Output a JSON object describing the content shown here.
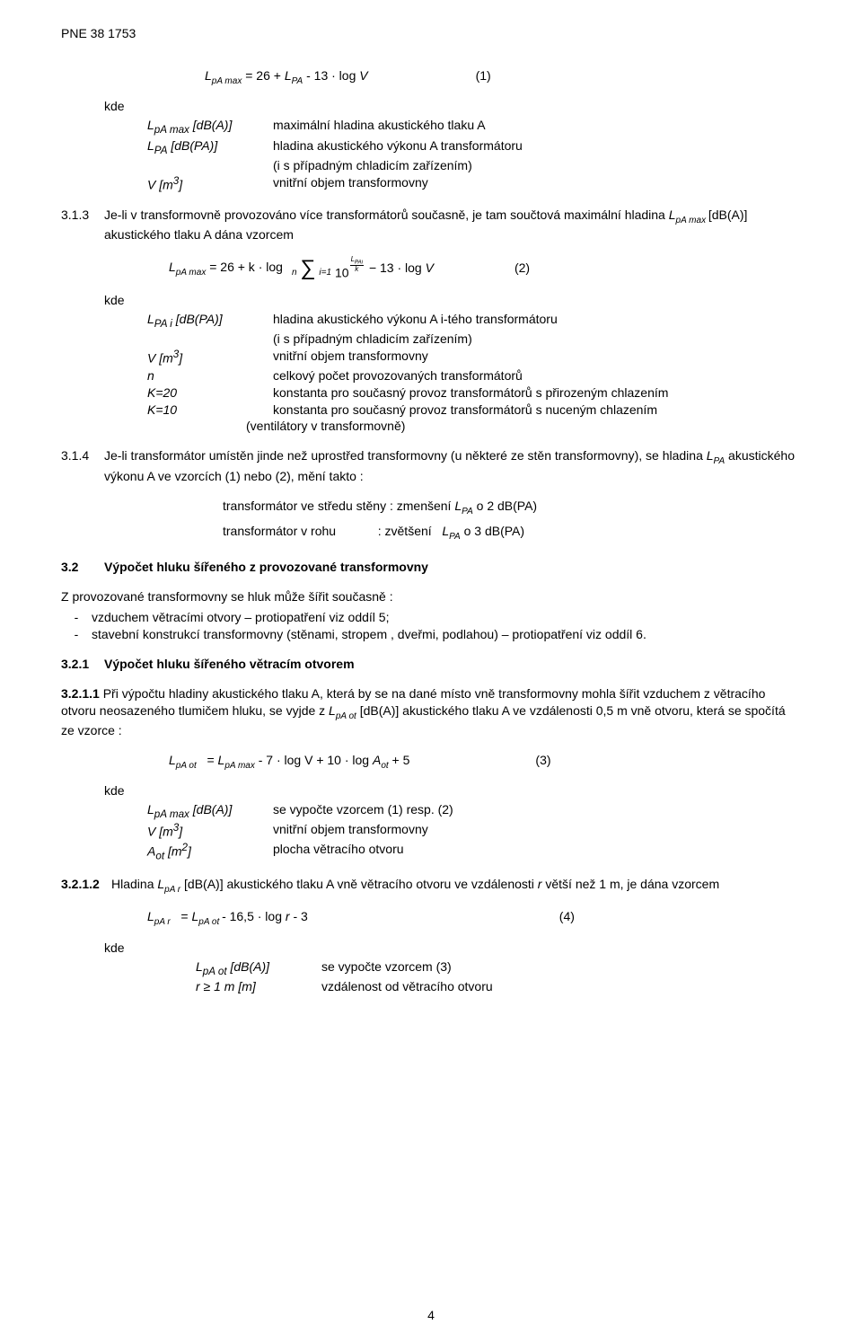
{
  "header": "PNE 38 1753",
  "page_number": "4",
  "eq1": {
    "lhs_prefix": "L",
    "lhs_sub": "pA  max",
    "rhs": " = 26 + ",
    "rhs_L": "L",
    "rhs_Lsub": "PA",
    "rhs_tail": " - 13 · log ",
    "rhs_V": "V",
    "tag": "(1)"
  },
  "kde_label": "kde",
  "defs1": [
    {
      "sym_html": "L<sub>pA  max</sub>  [dB(A)]",
      "desc": "maximální hladina akustického tlaku A"
    },
    {
      "sym_html": "L<sub>PA</sub> [dB(PA)]",
      "desc": "hladina akustického výkonu A transformátoru"
    },
    {
      "sym_html": "",
      "desc": "(i s případným chladicím zařízením)"
    },
    {
      "sym_html": "V  [m<sup>3</sup>]",
      "desc": "vnitřní objem transformovny"
    }
  ],
  "sec313": {
    "num": "3.1.3",
    "text_a": "Je-li v transformovně provozováno více transformátorů současně, je tam součtová  maximální hladina ",
    "text_b": "L",
    "text_b_sub": "pA max ",
    "text_c": "[dB(A)] akustického tlaku A dána vzorcem"
  },
  "eq2": {
    "lhs": "L",
    "lhs_sub": "pA  max",
    "eq": "= 26 + k · log ",
    "ten": "10",
    "exp_num": "L",
    "exp_num_sub": "PAi",
    "exp_den": "k",
    "sum_top": "n",
    "sum_bot": "i=1",
    "tail": " − 13 · log ",
    "V": "V",
    "tag": "(2)"
  },
  "defs2": [
    {
      "sym_html": "L<sub>PA i</sub> [dB(PA)]",
      "desc": "hladina akustického výkonu A i-tého transformátoru"
    },
    {
      "sym_html": "",
      "desc": "(i s případným chladicím zařízením)"
    },
    {
      "sym_html": "V [m<sup>3</sup>]",
      "desc": "vnitřní objem transformovny"
    },
    {
      "sym_html": "n",
      "desc": "celkový počet provozovaných transformátorů"
    },
    {
      "sym_html": "K=20",
      "desc": " konstanta pro současný provoz transformátorů s přirozeným   chlazením"
    },
    {
      "sym_html": "K=10",
      "desc": " konstanta pro současný provoz transformátorů s nuceným chlazením"
    },
    {
      "sym_html": "",
      "desc": "(ventilátory v transformovně)"
    }
  ],
  "sec314": {
    "num": "3.1.4",
    "text_a": "Je-li transformátor umístěn jinde než uprostřed transformovny (u některé ze stěn transformovny), se hladina ",
    "text_b": "L",
    "text_b_sub": "PA",
    "text_c": " akustického výkonu A ve vzorcích (1) nebo (2),  mění takto :"
  },
  "sec314_lines": {
    "l1_a": "transformátor ve středu stěny :  zmenšení ",
    "l1_b": "L",
    "l1_b_sub": "PA",
    "l1_c": " o 2 dB(PA)",
    "l2_a": "transformátor v rohu",
    "l2_b": "            : zvětšení   ",
    "l2_c": "L",
    "l2_c_sub": "PA",
    "l2_d": " o 3 dB(PA)"
  },
  "sec32": {
    "num": "3.2",
    "title": "Výpočet hluku šířeného z provozované transformovny"
  },
  "sec32_intro": "Z provozované transformovny se hluk může šířit současně :",
  "sec32_items": [
    "vzduchem větracími otvory – protiopatření viz oddíl 5;",
    "stavební konstrukcí transformovny (stěnami, stropem , dveřmi, podlahou) –  protiopatření  viz oddíl 6."
  ],
  "sec321": {
    "num": "3.2.1",
    "title": "Výpočet hluku šířeného větracím otvorem"
  },
  "sec3211": {
    "num": "3.2.1.1",
    "text_a": " Při výpočtu hladiny akustického tlaku A, která by se na dané místo vně transformovny mohla šířit vzduchem z větracího otvoru neosazeného tlumičem hluku, se vyjde z ",
    "L": "L",
    "L_sub": "pA ot",
    "text_b": " [dB(A)] akustického tlaku A ve vzdálenosti 0,5 m vně otvoru, která se spočítá ze vzorce :"
  },
  "eq3": {
    "lhs": "L",
    "lhs_sub": "pA ot",
    "mid": "   = ",
    "L2": "L",
    "L2_sub": "pA  max",
    "tail": "  - 7 · log V + 10 · log ",
    "Aot": "A",
    "Aot_sub": "ot",
    "tail2": " + 5",
    "tag": "(3)"
  },
  "defs3": [
    {
      "sym_html": "L<sub>pA  max</sub>  [dB(A)]",
      "desc": "se vypočte  vzorcem (1) resp. (2)"
    },
    {
      "sym_html": "V [m<sup>3</sup>]",
      "desc": "vnitřní objem transformovny"
    },
    {
      "sym_html": "A<sub>ot</sub> [m<sup>2</sup>]",
      "desc": "plocha větracího otvoru"
    }
  ],
  "sec3212": {
    "num": "3.2.1.2",
    "text_a": "Hladina ",
    "L": "L",
    "L_sub": "pA r",
    "text_b": " [dB(A)] akustického tlaku A vně větracího otvoru ve vzdálenosti ",
    "r": "r",
    "text_c": " větší než 1 m, je dána vzorcem"
  },
  "eq4": {
    "lhs": "L",
    "lhs_sub": "pA r",
    "mid": "   = ",
    "L2": "L",
    "L2_sub": "pA ot ",
    "tail": " - 16,5 · log ",
    "r": "r",
    "tail2": "  - 3",
    "tag": "(4)"
  },
  "defs4": [
    {
      "sym_html": "L<sub>pA ot</sub> [dB(A)]",
      "desc": "se vypočte vzorcem  (3)"
    },
    {
      "sym_html": "r ≥ 1 m  [m]",
      "desc": "vzdálenost od větracího otvoru"
    }
  ]
}
